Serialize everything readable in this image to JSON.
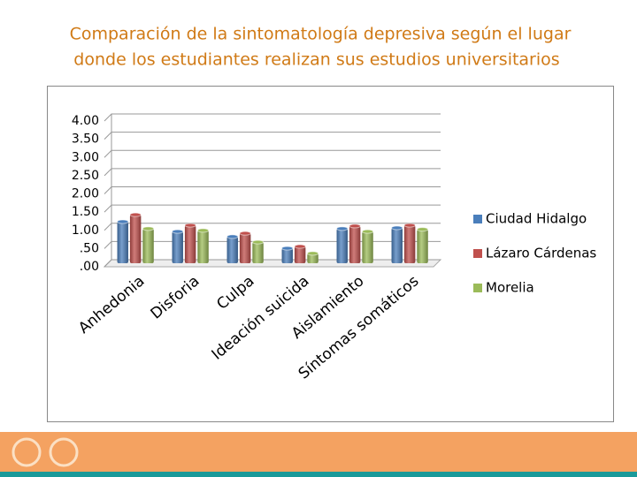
{
  "chart_data": {
    "type": "bar",
    "title": [
      "Comparación de la sintomatología depresiva según el lugar",
      "donde los estudiantes realizan sus estudios universitarios"
    ],
    "categories": [
      "Anhedonia",
      "Disforia",
      "Culpa",
      "Ideación suicida",
      "Aislamiento",
      "Síntomas somáticos"
    ],
    "series": [
      {
        "name": "Ciudad Hidalgo",
        "color": "#4a7ebb",
        "values": [
          1.14,
          0.87,
          0.73,
          0.41,
          0.95,
          0.97
        ]
      },
      {
        "name": "Lázaro Cárdenas",
        "color": "#c0504d",
        "values": [
          1.33,
          1.04,
          0.82,
          0.46,
          1.02,
          1.04
        ]
      },
      {
        "name": "Morelia",
        "color": "#9bbb59",
        "values": [
          0.95,
          0.9,
          0.58,
          0.27,
          0.87,
          0.93
        ]
      }
    ],
    "ylim": [
      0,
      4
    ],
    "yticks": [
      {
        "value": 0,
        "label": ".00"
      },
      {
        "value": 0.5,
        "label": ".50"
      },
      {
        "value": 1,
        "label": "1.00"
      },
      {
        "value": 1.5,
        "label": "1.50"
      },
      {
        "value": 2,
        "label": "2.00"
      },
      {
        "value": 2.5,
        "label": "2.50"
      },
      {
        "value": 3,
        "label": "3.00"
      },
      {
        "value": 3.5,
        "label": "3.50"
      },
      {
        "value": 4,
        "label": "4.00"
      }
    ],
    "grid": true,
    "legend": "right"
  }
}
